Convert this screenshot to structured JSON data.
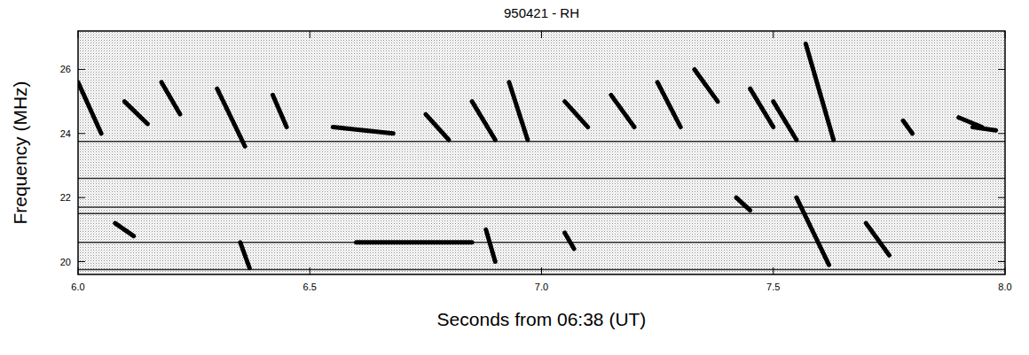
{
  "chart_data": {
    "type": "spectrogram",
    "title": "950421 - RH",
    "x_label": "Seconds from 06:38 (UT)",
    "y_label": "Frequency (MHz)",
    "xlim": [
      6.0,
      8.0
    ],
    "xticks": [
      {
        "value": 6.0,
        "label": "6.0"
      },
      {
        "value": 6.5,
        "label": "6.5"
      },
      {
        "value": 7.0,
        "label": "7.0"
      },
      {
        "value": 7.5,
        "label": "7.5"
      },
      {
        "value": 8.0,
        "label": "8.0"
      }
    ],
    "ylim": [
      19.6,
      27.2
    ],
    "yticks": [
      20,
      22,
      24,
      26
    ],
    "lines": [
      19.75,
      20.6,
      21.5,
      21.7,
      22.6,
      23.75
    ],
    "bursts": {
      "t_start": [
        6.0,
        6.1,
        6.18,
        6.3,
        6.42,
        6.55,
        6.75,
        6.85,
        6.93,
        7.05,
        7.15,
        7.25,
        7.33,
        7.45,
        7.5,
        7.57,
        7.78,
        7.9,
        7.93,
        6.08,
        6.35,
        6.6,
        6.88,
        7.05,
        7.42,
        7.55,
        7.7
      ],
      "f_start": [
        25.6,
        25.0,
        25.6,
        25.4,
        25.2,
        24.2,
        24.6,
        25.0,
        25.6,
        25.0,
        25.2,
        25.6,
        26.0,
        25.4,
        25.0,
        26.8,
        24.4,
        24.5,
        24.2,
        21.2,
        20.6,
        20.6,
        21.0,
        20.9,
        22.0,
        22.0,
        21.2
      ],
      "t_end": [
        6.05,
        6.15,
        6.22,
        6.36,
        6.45,
        6.68,
        6.8,
        6.9,
        6.97,
        7.1,
        7.2,
        7.3,
        7.38,
        7.5,
        7.55,
        7.63,
        7.8,
        7.95,
        7.98,
        6.12,
        6.37,
        6.85,
        6.9,
        7.07,
        7.45,
        7.62,
        7.75
      ],
      "f_end": [
        24.0,
        24.3,
        24.6,
        23.6,
        24.2,
        24.0,
        23.8,
        23.8,
        23.8,
        24.2,
        24.2,
        24.2,
        25.0,
        24.2,
        23.8,
        23.8,
        24.0,
        24.2,
        24.1,
        20.8,
        19.8,
        20.6,
        20.0,
        20.4,
        21.6,
        19.9,
        20.2
      ]
    },
    "color": "#000000"
  }
}
